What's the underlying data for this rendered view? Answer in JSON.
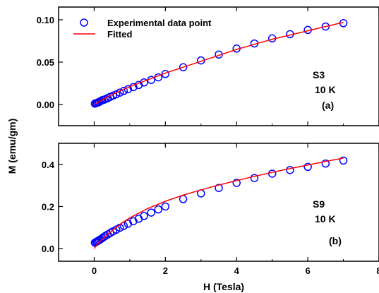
{
  "chart_data": [
    {
      "type": "scatter",
      "panel": "top",
      "xlim": [
        -1,
        8
      ],
      "ylim": [
        -0.025,
        0.115
      ],
      "xticks": [
        0,
        2,
        4,
        6,
        8
      ],
      "yticks": [
        0.0,
        0.05,
        0.1
      ],
      "ytick_labels": [
        "0.00",
        "0.05",
        "0.10"
      ],
      "series": [
        {
          "name": "Experimental data point",
          "marker": "open-circle",
          "color": "#0000ff",
          "x": [
            0.02,
            0.05,
            0.08,
            0.11,
            0.14,
            0.18,
            0.22,
            0.27,
            0.32,
            0.38,
            0.45,
            0.53,
            0.62,
            0.72,
            0.83,
            0.95,
            1.1,
            1.25,
            1.4,
            1.6,
            1.8,
            2.0,
            2.5,
            3.0,
            3.5,
            4.0,
            4.5,
            5.0,
            5.5,
            6.0,
            6.5,
            7.0
          ],
          "y": [
            0.001,
            0.0015,
            0.002,
            0.0025,
            0.003,
            0.004,
            0.005,
            0.0055,
            0.0065,
            0.0075,
            0.009,
            0.0105,
            0.012,
            0.014,
            0.016,
            0.018,
            0.0205,
            0.023,
            0.026,
            0.029,
            0.032,
            0.036,
            0.044,
            0.052,
            0.059,
            0.066,
            0.072,
            0.078,
            0.083,
            0.088,
            0.092,
            0.096
          ]
        },
        {
          "name": "Fitted",
          "marker": "line",
          "color": "#ff0000",
          "x": [
            0,
            0.25,
            0.5,
            0.75,
            1,
            1.5,
            2,
            2.5,
            3,
            3.5,
            4,
            4.5,
            5,
            5.5,
            6,
            6.5,
            7
          ],
          "y": [
            0,
            0.006,
            0.0115,
            0.0165,
            0.021,
            0.029,
            0.037,
            0.044,
            0.051,
            0.058,
            0.065,
            0.071,
            0.077,
            0.082,
            0.087,
            0.092,
            0.097
          ]
        }
      ],
      "annotations": [
        "S3",
        "10 K",
        "(a)"
      ]
    },
    {
      "type": "scatter",
      "panel": "bottom",
      "xlim": [
        -1,
        8
      ],
      "ylim": [
        -0.06,
        0.5
      ],
      "xticks": [
        0,
        2,
        4,
        6,
        8
      ],
      "xtick_labels": [
        "0",
        "2",
        "4",
        "6",
        "8"
      ],
      "yticks": [
        0.0,
        0.2,
        0.4
      ],
      "ytick_labels": [
        "0.0",
        "0.2",
        "0.4"
      ],
      "series": [
        {
          "name": "Experimental data point",
          "marker": "open-circle",
          "color": "#0000ff",
          "x": [
            0.02,
            0.05,
            0.08,
            0.11,
            0.14,
            0.18,
            0.22,
            0.27,
            0.32,
            0.38,
            0.45,
            0.53,
            0.62,
            0.72,
            0.83,
            0.95,
            1.1,
            1.25,
            1.4,
            1.6,
            1.8,
            2.0,
            2.5,
            3.0,
            3.5,
            4.0,
            4.5,
            5.0,
            5.5,
            6.0,
            6.5,
            7.0
          ],
          "y": [
            0.028,
            0.031,
            0.034,
            0.037,
            0.04,
            0.044,
            0.049,
            0.055,
            0.061,
            0.067,
            0.074,
            0.082,
            0.09,
            0.099,
            0.108,
            0.118,
            0.13,
            0.142,
            0.155,
            0.171,
            0.186,
            0.2,
            0.235,
            0.262,
            0.288,
            0.312,
            0.335,
            0.356,
            0.373,
            0.388,
            0.404,
            0.418
          ]
        },
        {
          "name": "Fitted",
          "marker": "line",
          "color": "#ff0000",
          "x": [
            0,
            0.05,
            0.1,
            0.2,
            0.3,
            0.5,
            0.75,
            1,
            1.5,
            2,
            2.5,
            3,
            3.5,
            4,
            4.5,
            5,
            5.5,
            6,
            6.5,
            7
          ],
          "y": [
            0.0,
            0.012,
            0.022,
            0.04,
            0.056,
            0.085,
            0.118,
            0.146,
            0.19,
            0.225,
            0.254,
            0.279,
            0.302,
            0.323,
            0.343,
            0.362,
            0.38,
            0.397,
            0.414,
            0.43
          ]
        }
      ],
      "annotations": [
        "S9",
        "10 K",
        "(b)"
      ]
    }
  ],
  "xlabel": "H (Tesla)",
  "ylabel": "M (emu/gm)",
  "legend": {
    "position": "top-left",
    "entries": [
      {
        "label": "Experimental data point",
        "marker": "open-circle",
        "color": "#0000ff"
      },
      {
        "label": "Fitted",
        "marker": "line",
        "color": "#ff0000"
      }
    ]
  },
  "colors": {
    "data": "#0000ff",
    "fit": "#ff0000"
  }
}
